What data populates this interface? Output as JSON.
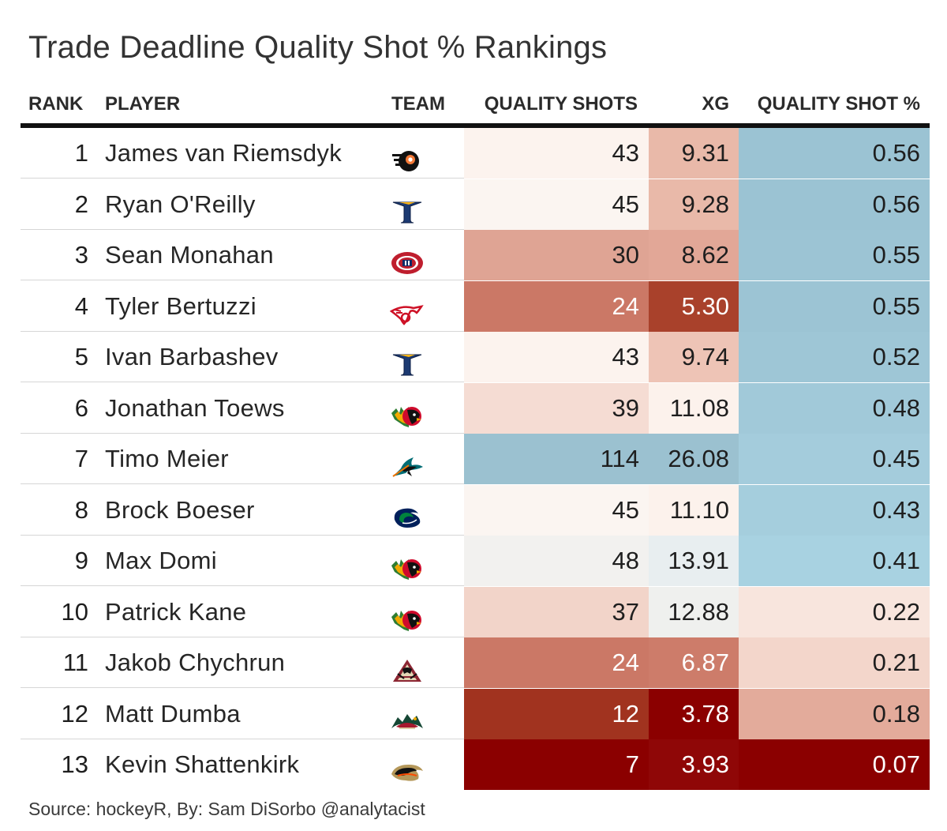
{
  "title": "Trade Deadline Quality Shot % Rankings",
  "columns": {
    "rank": "RANK",
    "player": "PLAYER",
    "team": "TEAM",
    "quality_shots": "QUALITY SHOTS",
    "xg": "XG",
    "quality_shot_pct": "QUALITY SHOT %"
  },
  "source": "Source: hockeyR, By: Sam DiSorbo @analytacist",
  "colors": {
    "low": "#8b0000",
    "mid": "#f2f0ee",
    "high": "#9bc3d3"
  },
  "chart_data": {
    "type": "table",
    "title": "Trade Deadline Quality Shot % Rankings",
    "columns": [
      "RANK",
      "PLAYER",
      "TEAM",
      "QUALITY SHOTS",
      "XG",
      "QUALITY SHOT %"
    ],
    "rows": [
      {
        "rank": "1",
        "player": "James van Riemsdyk",
        "team_icon": "flyers-logo-icon",
        "quality_shots": "43",
        "xg": "9.31",
        "qsp": "0.56",
        "qs_color": "#fcf3ee",
        "xg_color": "#e9b9a9",
        "qsp_color": "#9bc3d3"
      },
      {
        "rank": "2",
        "player": "Ryan O'Reilly",
        "team_icon": "blues-logo-icon",
        "quality_shots": "45",
        "xg": "9.28",
        "qsp": "0.56",
        "qs_color": "#fbf5f1",
        "xg_color": "#e9b9a9",
        "qsp_color": "#9bc3d3"
      },
      {
        "rank": "3",
        "player": "Sean Monahan",
        "team_icon": "canadiens-logo-icon",
        "quality_shots": "30",
        "xg": "8.62",
        "qsp": "0.55",
        "qs_color": "#dfa494",
        "xg_color": "#e2a797",
        "qsp_color": "#9cc4d4"
      },
      {
        "rank": "4",
        "player": "Tyler Bertuzzi",
        "team_icon": "red-wings-logo-icon",
        "quality_shots": "24",
        "xg": "5.30",
        "qsp": "0.55",
        "qs_color": "#cb7866",
        "xg_color": "#a9412b",
        "qsp_color": "#9cc4d4"
      },
      {
        "rank": "5",
        "player": "Ivan Barbashev",
        "team_icon": "blues-logo-icon",
        "quality_shots": "43",
        "xg": "9.74",
        "qsp": "0.52",
        "qs_color": "#fcf3ee",
        "xg_color": "#eec4b6",
        "qsp_color": "#9ec6d6"
      },
      {
        "rank": "6",
        "player": "Jonathan Toews",
        "team_icon": "blackhawks-logo-icon",
        "quality_shots": "39",
        "xg": "11.08",
        "qsp": "0.48",
        "qs_color": "#f5dcd3",
        "xg_color": "#fcf2ec",
        "qsp_color": "#a1c9d9"
      },
      {
        "rank": "7",
        "player": "Timo Meier",
        "team_icon": "sharks-logo-icon",
        "quality_shots": "114",
        "xg": "26.08",
        "qsp": "0.45",
        "qs_color": "#9bc1d0",
        "xg_color": "#9bc1d0",
        "qsp_color": "#a4ccdc"
      },
      {
        "rank": "8",
        "player": "Brock Boeser",
        "team_icon": "canucks-logo-icon",
        "quality_shots": "45",
        "xg": "11.10",
        "qsp": "0.43",
        "qs_color": "#fbf5f1",
        "xg_color": "#fcf2ec",
        "qsp_color": "#a5cedd"
      },
      {
        "rank": "9",
        "player": "Max Domi",
        "team_icon": "blackhawks-logo-icon",
        "quality_shots": "48",
        "xg": "13.91",
        "qsp": "0.41",
        "qs_color": "#f2f1ef",
        "xg_color": "#e8eef0",
        "qsp_color": "#a8d2e1"
      },
      {
        "rank": "10",
        "player": "Patrick Kane",
        "team_icon": "blackhawks-logo-icon",
        "quality_shots": "37",
        "xg": "12.88",
        "qsp": "0.22",
        "qs_color": "#f2d4c9",
        "xg_color": "#eff0ee",
        "qsp_color": "#f8e5dd"
      },
      {
        "rank": "11",
        "player": "Jakob Chychrun",
        "team_icon": "coyotes-logo-icon",
        "quality_shots": "24",
        "xg": "6.87",
        "qsp": "0.21",
        "qs_color": "#cb7866",
        "xg_color": "#cd7c6a",
        "qsp_color": "#f3d6cb"
      },
      {
        "rank": "12",
        "player": "Matt Dumba",
        "team_icon": "wild-logo-icon",
        "quality_shots": "12",
        "xg": "3.78",
        "qsp": "0.18",
        "qs_color": "#a1331f",
        "xg_color": "#8b0000",
        "qsp_color": "#e3ab9b"
      },
      {
        "rank": "13",
        "player": "Kevin Shattenkirk",
        "team_icon": "ducks-logo-icon",
        "quality_shots": "7",
        "xg": "3.93",
        "qsp": "0.07",
        "qs_color": "#8b0000",
        "xg_color": "#8f0707",
        "qsp_color": "#8b0000"
      }
    ]
  }
}
